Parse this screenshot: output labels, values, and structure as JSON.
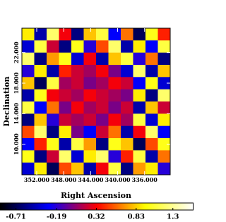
{
  "chart_data": {
    "type": "heatmap",
    "xlabel": "Right Ascension",
    "ylabel": "Declination",
    "xlim": [
      354.2,
      332.2
    ],
    "ylim": [
      6.0,
      25.2
    ],
    "xticks": [
      {
        "value": 352,
        "label": "352.000"
      },
      {
        "value": 348,
        "label": "348.000"
      },
      {
        "value": 344,
        "label": "344.000"
      },
      {
        "value": 340,
        "label": "340.000"
      },
      {
        "value": 336,
        "label": "336.000"
      }
    ],
    "yticks": [
      {
        "value": 10,
        "label": "10.000"
      },
      {
        "value": 14,
        "label": "14.000"
      },
      {
        "value": 18,
        "label": "18.000"
      },
      {
        "value": 22,
        "label": "22.000"
      }
    ],
    "z": [
      [
        0.9,
        -0.5,
        1.2,
        0.3,
        -0.6,
        0.8,
        1.1,
        -0.3,
        0.6,
        -0.7,
        1.0,
        0.4
      ],
      [
        -0.4,
        1.1,
        0.2,
        -0.6,
        1.0,
        -0.2,
        0.5,
        1.2,
        -0.5,
        0.9,
        -0.3,
        1.1
      ],
      [
        1.2,
        -0.6,
        0.7,
        1.0,
        -0.4,
        0.3,
        -0.5,
        0.8,
        1.1,
        -0.2,
        0.6,
        -0.6
      ],
      [
        -0.2,
        0.9,
        -0.5,
        0.4,
        0.2,
        0.1,
        0.3,
        0.0,
        -0.4,
        1.2,
        -0.5,
        0.8
      ],
      [
        0.8,
        -0.7,
        1.1,
        0.1,
        0.2,
        0.0,
        0.1,
        0.3,
        0.2,
        -0.3,
        1.0,
        -0.4
      ],
      [
        -0.5,
        1.0,
        0.3,
        0.2,
        0.1,
        0.3,
        0.2,
        0.1,
        0.0,
        0.9,
        -0.6,
        1.2
      ],
      [
        1.1,
        -0.3,
        0.6,
        0.0,
        0.3,
        0.1,
        0.2,
        0.0,
        0.2,
        -0.5,
        0.8,
        0.2
      ],
      [
        -0.6,
        0.8,
        -0.2,
        0.2,
        0.1,
        0.2,
        0.0,
        0.3,
        0.1,
        1.1,
        -0.4,
        0.9
      ],
      [
        0.5,
        1.2,
        -0.6,
        0.9,
        0.0,
        -0.3,
        0.2,
        0.6,
        -0.5,
        0.3,
        1.2,
        -0.3
      ],
      [
        -0.3,
        0.4,
        1.0,
        -0.5,
        1.1,
        0.7,
        -0.6,
        1.0,
        0.8,
        -0.7,
        0.5,
        1.0
      ],
      [
        1.0,
        -0.6,
        0.2,
        1.2,
        -0.4,
        0.9,
        1.2,
        -0.2,
        0.4,
        1.1,
        -0.5,
        0.6
      ],
      [
        -0.4,
        0.9,
        -0.7,
        0.5,
        0.8,
        -0.5,
        0.3,
        1.1,
        -0.6,
        0.7,
        0.9,
        -0.2
      ]
    ],
    "clim": [
      -0.91,
      1.56
    ],
    "colormap": [
      "#000000",
      "#0000ff",
      "#ff0000",
      "#ffff00",
      "#ffffff"
    ],
    "colorbar_ticks": [
      -0.71,
      -0.19,
      0.32,
      0.83,
      1.3
    ]
  }
}
